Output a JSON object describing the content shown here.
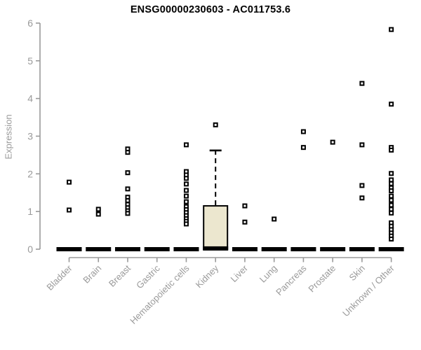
{
  "chart_data": {
    "type": "boxplot",
    "title": "ENSG00000230603 - AC011753.6",
    "ylabel": "Expression",
    "xlabel": "",
    "ylim": [
      0,
      6
    ],
    "yticks": [
      0,
      1,
      2,
      3,
      4,
      5,
      6
    ],
    "grid": false,
    "legend": "none",
    "categories": [
      "Bladder",
      "Brain",
      "Breast",
      "Gastric",
      "Hematopoietic cells",
      "Kidney",
      "Liver",
      "Lung",
      "Pancreas",
      "Prostate",
      "Skin",
      "Unknown / Other"
    ],
    "series": [
      {
        "category": "Bladder",
        "box": {
          "low": 0,
          "q1": 0,
          "median": 0,
          "q3": 0,
          "high": 0
        },
        "outliers": [
          1.78,
          1.04
        ]
      },
      {
        "category": "Brain",
        "box": {
          "low": 0,
          "q1": 0,
          "median": 0,
          "q3": 0,
          "high": 0
        },
        "outliers": [
          1.06,
          0.93
        ]
      },
      {
        "category": "Breast",
        "box": {
          "low": 0,
          "q1": 0,
          "median": 0,
          "q3": 0,
          "high": 0
        },
        "outliers": [
          2.66,
          2.57,
          2.03,
          1.6,
          1.38,
          1.29,
          1.19,
          1.1,
          1.02,
          0.95
        ]
      },
      {
        "category": "Gastric",
        "box": {
          "low": 0,
          "q1": 0,
          "median": 0,
          "q3": 0,
          "high": 0
        },
        "outliers": []
      },
      {
        "category": "Hematopoietic cells",
        "box": {
          "low": 0,
          "q1": 0,
          "median": 0,
          "q3": 0,
          "high": 0
        },
        "outliers": [
          2.77,
          2.06,
          1.97,
          1.88,
          1.73,
          1.56,
          1.41,
          1.26,
          1.13,
          1.05,
          0.97,
          0.89,
          0.81,
          0.74,
          0.67
        ]
      },
      {
        "category": "Kidney",
        "box": {
          "low": 0,
          "q1": 0,
          "median": 0.02,
          "q3": 1.15,
          "high": 2.62
        },
        "outliers": [
          3.3
        ]
      },
      {
        "category": "Liver",
        "box": {
          "low": 0,
          "q1": 0,
          "median": 0,
          "q3": 0,
          "high": 0
        },
        "outliers": [
          1.15,
          0.72
        ]
      },
      {
        "category": "Lung",
        "box": {
          "low": 0,
          "q1": 0,
          "median": 0,
          "q3": 0,
          "high": 0
        },
        "outliers": [
          0.8
        ]
      },
      {
        "category": "Pancreas",
        "box": {
          "low": 0,
          "q1": 0,
          "median": 0,
          "q3": 0,
          "high": 0
        },
        "outliers": [
          3.12,
          2.7
        ]
      },
      {
        "category": "Prostate",
        "box": {
          "low": 0,
          "q1": 0,
          "median": 0,
          "q3": 0,
          "high": 0
        },
        "outliers": [
          2.84
        ]
      },
      {
        "category": "Skin",
        "box": {
          "low": 0,
          "q1": 0,
          "median": 0,
          "q3": 0,
          "high": 0
        },
        "outliers": [
          4.4,
          2.77,
          1.69,
          1.36
        ]
      },
      {
        "category": "Unknown / Other",
        "box": {
          "low": 0,
          "q1": 0,
          "median": 0,
          "q3": 0,
          "high": 0
        },
        "outliers": [
          5.83,
          3.85,
          2.7,
          2.63,
          2.01,
          1.84,
          1.74,
          1.63,
          1.55,
          1.41,
          1.3,
          1.17,
          1.06,
          0.96,
          0.7,
          0.61,
          0.52,
          0.43,
          0.35,
          0.27
        ]
      }
    ],
    "colors": {
      "axis": "#9a9a9a",
      "tick_label": "#9a9a9a",
      "title": "#000000",
      "box_fill": "#ece7cf",
      "box_stroke": "#000000",
      "median_bar": "#000000",
      "whisker": "#000000",
      "outlier_stroke": "#000000",
      "outlier_fill": "#ffffff",
      "background": "#ffffff"
    }
  }
}
